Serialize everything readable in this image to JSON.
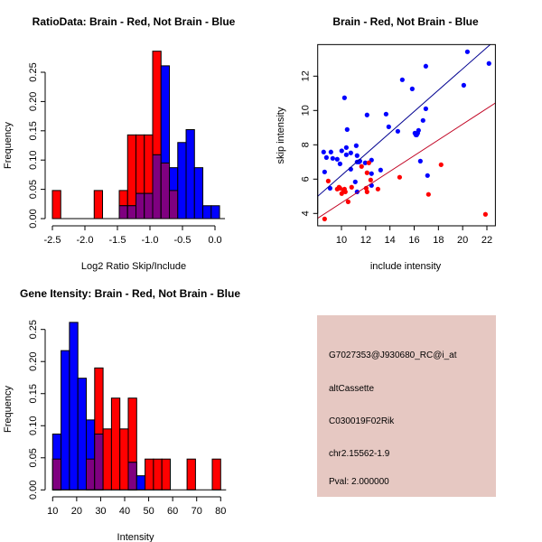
{
  "colors": {
    "red": "#ff0000",
    "blue": "#0000ff",
    "overlap": "#7f0080",
    "red_line": "#c00020",
    "blue_line": "#000090",
    "panel_bg": "#e6c8c2",
    "pval": "#a00000"
  },
  "chart_data": [
    {
      "type": "histogram",
      "title": "RatioData: Brain - Red, Not Brain - Blue",
      "xlabel": "Log2 Ratio Skip/Include",
      "ylabel": "Frequency",
      "bin_start": -2.5,
      "bin_width": 0.1285,
      "xticks": [
        -2.5,
        -2.0,
        -1.5,
        -1.0,
        -0.5,
        0.0
      ],
      "xtick_labels": [
        "-2.5",
        "-2.0",
        "-1.5",
        "-1.0",
        "-0.5",
        "0.0"
      ],
      "yticks": [
        0,
        0.05,
        0.1,
        0.15,
        0.2,
        0.25
      ],
      "ytick_labels": [
        "0.00",
        "0.05",
        "0.10",
        "0.15",
        "0.20",
        "0.25"
      ],
      "series": [
        {
          "name": "Brain",
          "color": "red",
          "values": [
            0.048,
            0,
            0,
            0,
            0,
            0.048,
            0,
            0,
            0.048,
            0.143,
            0.143,
            0.143,
            0.286,
            0.095,
            0.048,
            0,
            0,
            0,
            0,
            0
          ]
        },
        {
          "name": "Not Brain",
          "color": "blue",
          "values": [
            0,
            0,
            0,
            0,
            0,
            0,
            0,
            0,
            0.022,
            0.022,
            0.043,
            0.043,
            0.109,
            0.261,
            0.087,
            0.13,
            0.152,
            0.087,
            0.022,
            0.022
          ]
        }
      ]
    },
    {
      "type": "scatter",
      "title": "Brain - Red, Not Brain - Blue",
      "xlabel": "include intensity",
      "ylabel": "skip intensity",
      "xlim": [
        8.04,
        22.7
      ],
      "ylim": [
        3.28,
        13.84
      ],
      "xticks": [
        10,
        12,
        14,
        16,
        18,
        20,
        22
      ],
      "xtick_labels": [
        "10",
        "12",
        "14",
        "16",
        "18",
        "20",
        "22"
      ],
      "yticks": [
        4,
        6,
        8,
        10,
        12
      ],
      "ytick_labels": [
        "4",
        "6",
        "8",
        "10",
        "12"
      ],
      "series": [
        {
          "name": "Not Brain",
          "color": "blue",
          "fit": {
            "slope": 0.621,
            "intercept": 0.007
          },
          "points": [
            [
              8.53,
              7.58
            ],
            [
              8.61,
              6.42
            ],
            [
              8.76,
              7.26
            ],
            [
              9.13,
              7.58
            ],
            [
              9.06,
              5.47
            ],
            [
              9.28,
              7.21
            ],
            [
              9.65,
              7.16
            ],
            [
              9.88,
              6.89
            ],
            [
              10.02,
              7.65
            ],
            [
              10.25,
              10.74
            ],
            [
              10.4,
              7.84
            ],
            [
              10.4,
              7.42
            ],
            [
              10.47,
              8.89
            ],
            [
              10.77,
              7.53
            ],
            [
              10.77,
              6.58
            ],
            [
              11.14,
              5.84
            ],
            [
              11.22,
              7.95
            ],
            [
              11.29,
              7.37
            ],
            [
              11.29,
              7.0
            ],
            [
              11.44,
              7.0
            ],
            [
              11.52,
              7.05
            ],
            [
              11.29,
              5.26
            ],
            [
              11.96,
              6.95
            ],
            [
              12.11,
              9.74
            ],
            [
              12.48,
              7.11
            ],
            [
              12.48,
              6.32
            ],
            [
              12.48,
              5.63
            ],
            [
              13.23,
              6.53
            ],
            [
              13.68,
              9.79
            ],
            [
              13.9,
              9.05
            ],
            [
              14.65,
              8.79
            ],
            [
              15.02,
              11.79
            ],
            [
              15.84,
              11.26
            ],
            [
              16.06,
              8.68
            ],
            [
              16.14,
              8.58
            ],
            [
              16.29,
              8.68
            ],
            [
              16.36,
              8.84
            ],
            [
              16.21,
              8.58
            ],
            [
              16.51,
              7.05
            ],
            [
              16.73,
              9.42
            ],
            [
              16.96,
              12.58
            ],
            [
              16.96,
              10.1
            ],
            [
              17.1,
              6.21
            ],
            [
              20.09,
              11.47
            ],
            [
              20.39,
              13.42
            ],
            [
              22.17,
              12.74
            ]
          ]
        },
        {
          "name": "Brain",
          "color": "red",
          "fit": {
            "slope": 0.458,
            "intercept": 0.04
          },
          "points": [
            [
              8.61,
              3.68
            ],
            [
              8.91,
              5.89
            ],
            [
              9.65,
              5.42
            ],
            [
              9.8,
              5.53
            ],
            [
              9.88,
              5.47
            ],
            [
              10.02,
              5.16
            ],
            [
              10.17,
              5.32
            ],
            [
              10.25,
              5.42
            ],
            [
              10.32,
              5.26
            ],
            [
              10.55,
              4.68
            ],
            [
              10.84,
              5.53
            ],
            [
              11.66,
              6.74
            ],
            [
              12.11,
              6.37
            ],
            [
              12.04,
              5.47
            ],
            [
              12.11,
              5.26
            ],
            [
              12.26,
              6.95
            ],
            [
              12.41,
              5.95
            ],
            [
              13.01,
              5.42
            ],
            [
              14.8,
              6.11
            ],
            [
              17.18,
              5.11
            ],
            [
              18.22,
              6.84
            ],
            [
              21.88,
              3.95
            ]
          ]
        }
      ]
    },
    {
      "type": "histogram",
      "title": "Gene Itensity: Brain - Red, Not Brain - Blue",
      "xlabel": "Intensity",
      "ylabel": "Frequency",
      "bin_start": 10,
      "bin_width": 3.5,
      "xticks": [
        10,
        20,
        30,
        40,
        50,
        60,
        70,
        80
      ],
      "xtick_labels": [
        "10",
        "20",
        "30",
        "40",
        "50",
        "60",
        "70",
        "80"
      ],
      "yticks": [
        0,
        0.05,
        0.1,
        0.15,
        0.2,
        0.25
      ],
      "ytick_labels": [
        "0.00",
        "0.05",
        "0.10",
        "0.15",
        "0.20",
        "0.25"
      ],
      "series": [
        {
          "name": "Brain",
          "color": "red",
          "values": [
            0.048,
            0,
            0,
            0,
            0.048,
            0.19,
            0.095,
            0.143,
            0.095,
            0.143,
            0,
            0.048,
            0.048,
            0.048,
            0,
            0,
            0.048,
            0,
            0,
            0.048
          ]
        },
        {
          "name": "Not Brain",
          "color": "blue",
          "values": [
            0.087,
            0.217,
            0.261,
            0.174,
            0.109,
            0.087,
            0,
            0,
            0,
            0.043,
            0.022,
            0,
            0,
            0,
            0,
            0,
            0,
            0,
            0,
            0
          ]
        }
      ]
    }
  ],
  "info_panel": {
    "probe_id": "G7027353@J930680_RC@i_at",
    "event_type": "altCassette",
    "gene": "C030019F02Rik",
    "location": "chr2.15562-1.9",
    "pval": "Pval: 2.000000"
  }
}
